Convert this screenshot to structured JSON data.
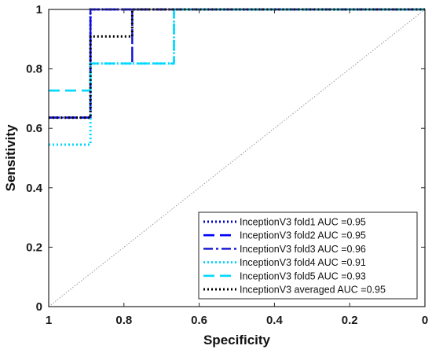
{
  "chart_data": {
    "type": "line",
    "title": "",
    "xlabel": "Specificity",
    "ylabel": "Sensitivity",
    "xlim": [
      1,
      0
    ],
    "ylim": [
      0,
      1
    ],
    "x_reversed": true,
    "xticks": [
      1,
      0.8,
      0.6,
      0.4,
      0.2,
      0
    ],
    "xtick_labels": [
      "1",
      "0.8",
      "0.6",
      "0.4",
      "0.2",
      "0"
    ],
    "yticks": [
      0,
      0.2,
      0.4,
      0.6,
      0.8,
      1
    ],
    "ytick_labels": [
      "0",
      "0.2",
      "0.4",
      "0.6",
      "0.8",
      "1"
    ],
    "grid": false,
    "legend_position": "bottom-right",
    "series": [
      {
        "name": "InceptionV3 fold1 AUC =0.95",
        "color": "#0000CC",
        "dash": "dotted",
        "x": [
          1,
          0.889,
          0.889,
          0.889,
          0.889,
          0
        ],
        "y": [
          0.636,
          0.636,
          0.818,
          0.909,
          1,
          1
        ]
      },
      {
        "name": "InceptionV3 fold2 AUC =0.95",
        "color": "#0000FF",
        "dash": "dashed",
        "x": [
          1,
          0.889,
          0.889,
          0
        ],
        "y": [
          0.636,
          0.636,
          1,
          1
        ]
      },
      {
        "name": "InceptionV3 fold3 AUC =0.96",
        "color": "#1010D0",
        "dash": "dashdot",
        "x": [
          1,
          0.889,
          0.889,
          0.778,
          0.778,
          0.778,
          0
        ],
        "y": [
          0.636,
          0.636,
          1,
          1,
          0.818,
          1,
          1
        ]
      },
      {
        "name": "InceptionV3 fold4 AUC =0.91",
        "color": "#00D8FF",
        "dash": "dotted",
        "x": [
          1,
          0.889,
          0.889,
          0.667,
          0.667,
          0
        ],
        "y": [
          0.545,
          0.545,
          0.818,
          0.818,
          1,
          1
        ]
      },
      {
        "name": "InceptionV3 fold5 AUC =0.93",
        "color": "#00D8FF",
        "dash": "dashed",
        "x": [
          1,
          0.889,
          0.889,
          0.667,
          0.667,
          0
        ],
        "y": [
          0.727,
          0.727,
          0.818,
          0.818,
          1,
          1
        ]
      },
      {
        "name": "InceptionV3 averaged AUC =0.95",
        "color": "#000000",
        "dash": "dotted",
        "x": [
          1,
          0.889,
          0.889,
          0.778,
          0.778,
          0
        ],
        "y": [
          0.636,
          0.636,
          0.909,
          0.909,
          1,
          1
        ]
      }
    ],
    "reference_line": {
      "x": [
        1,
        0
      ],
      "y": [
        0,
        1
      ],
      "color": "#999999",
      "dash": "dotted"
    }
  }
}
